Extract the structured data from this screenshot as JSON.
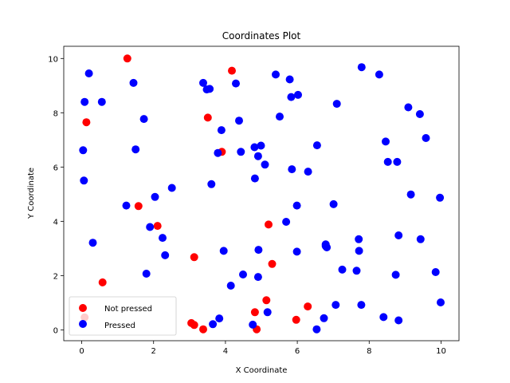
{
  "chart_data": {
    "type": "scatter",
    "title": "Coordinates Plot",
    "xlabel": "X Coordinate",
    "ylabel": "Y Coordinate",
    "xlim": [
      -0.5,
      10.5
    ],
    "ylim": [
      -0.4,
      10.45
    ],
    "xticks": [
      0,
      2,
      4,
      6,
      8,
      10
    ],
    "yticks": [
      0,
      2,
      4,
      6,
      8,
      10
    ],
    "grid": false,
    "legend_position": "lower-left",
    "series": [
      {
        "name": "Not pressed",
        "color": "#ff0000",
        "points": [
          [
            1.27,
            10.0
          ],
          [
            0.13,
            7.65
          ],
          [
            4.18,
            9.55
          ],
          [
            3.51,
            7.82
          ],
          [
            3.9,
            6.56
          ],
          [
            1.58,
            4.56
          ],
          [
            2.11,
            3.83
          ],
          [
            5.2,
            3.88
          ],
          [
            3.13,
            2.68
          ],
          [
            5.3,
            2.43
          ],
          [
            0.58,
            1.75
          ],
          [
            0.08,
            0.46
          ],
          [
            3.05,
            0.25
          ],
          [
            3.13,
            0.18
          ],
          [
            3.38,
            0.02
          ],
          [
            4.82,
            0.65
          ],
          [
            4.87,
            0.02
          ],
          [
            5.14,
            1.09
          ],
          [
            5.97,
            0.37
          ],
          [
            6.29,
            0.86
          ]
        ]
      },
      {
        "name": "Pressed",
        "color": "#0000ff",
        "points": [
          [
            0.2,
            9.45
          ],
          [
            0.08,
            8.4
          ],
          [
            0.56,
            8.4
          ],
          [
            1.44,
            9.1
          ],
          [
            0.04,
            6.62
          ],
          [
            0.06,
            5.5
          ],
          [
            1.73,
            7.77
          ],
          [
            1.5,
            6.65
          ],
          [
            0.31,
            3.21
          ],
          [
            1.24,
            4.58
          ],
          [
            2.04,
            4.9
          ],
          [
            2.51,
            5.23
          ],
          [
            1.9,
            3.79
          ],
          [
            2.25,
            3.39
          ],
          [
            2.32,
            2.75
          ],
          [
            1.8,
            2.07
          ],
          [
            3.38,
            9.1
          ],
          [
            3.48,
            8.86
          ],
          [
            3.56,
            8.88
          ],
          [
            4.29,
            9.08
          ],
          [
            3.89,
            7.36
          ],
          [
            4.38,
            7.71
          ],
          [
            3.79,
            6.52
          ],
          [
            3.61,
            5.37
          ],
          [
            4.43,
            6.56
          ],
          [
            4.81,
            6.73
          ],
          [
            4.91,
            6.4
          ],
          [
            4.99,
            6.79
          ],
          [
            5.1,
            6.09
          ],
          [
            4.82,
            5.58
          ],
          [
            5.4,
            9.41
          ],
          [
            5.51,
            7.86
          ],
          [
            5.79,
            9.23
          ],
          [
            5.83,
            8.58
          ],
          [
            6.02,
            8.66
          ],
          [
            5.85,
            5.92
          ],
          [
            6.3,
            5.83
          ],
          [
            6.55,
            6.8
          ],
          [
            5.99,
            4.58
          ],
          [
            5.69,
            3.98
          ],
          [
            7.1,
            8.33
          ],
          [
            7.01,
            4.63
          ],
          [
            7.79,
            9.68
          ],
          [
            8.28,
            9.41
          ],
          [
            8.46,
            6.94
          ],
          [
            8.52,
            6.19
          ],
          [
            8.78,
            6.19
          ],
          [
            9.09,
            8.2
          ],
          [
            9.41,
            7.95
          ],
          [
            9.58,
            7.07
          ],
          [
            9.16,
            4.99
          ],
          [
            9.97,
            4.87
          ],
          [
            3.95,
            2.91
          ],
          [
            4.15,
            1.63
          ],
          [
            4.49,
            2.04
          ],
          [
            4.92,
            2.95
          ],
          [
            4.91,
            1.95
          ],
          [
            5.99,
            2.88
          ],
          [
            6.79,
            3.09
          ],
          [
            6.79,
            3.15
          ],
          [
            6.82,
            3.04
          ],
          [
            7.71,
            3.34
          ],
          [
            8.82,
            3.48
          ],
          [
            7.25,
            2.22
          ],
          [
            7.65,
            2.18
          ],
          [
            7.72,
            2.91
          ],
          [
            8.74,
            2.03
          ],
          [
            9.43,
            3.34
          ],
          [
            9.85,
            2.13
          ],
          [
            3.65,
            0.21
          ],
          [
            3.83,
            0.42
          ],
          [
            4.76,
            0.19
          ],
          [
            5.17,
            0.65
          ],
          [
            6.54,
            0.02
          ],
          [
            6.74,
            0.43
          ],
          [
            7.07,
            0.92
          ],
          [
            7.78,
            0.92
          ],
          [
            8.4,
            0.47
          ],
          [
            8.82,
            0.35
          ],
          [
            9.99,
            1.01
          ]
        ]
      }
    ]
  }
}
